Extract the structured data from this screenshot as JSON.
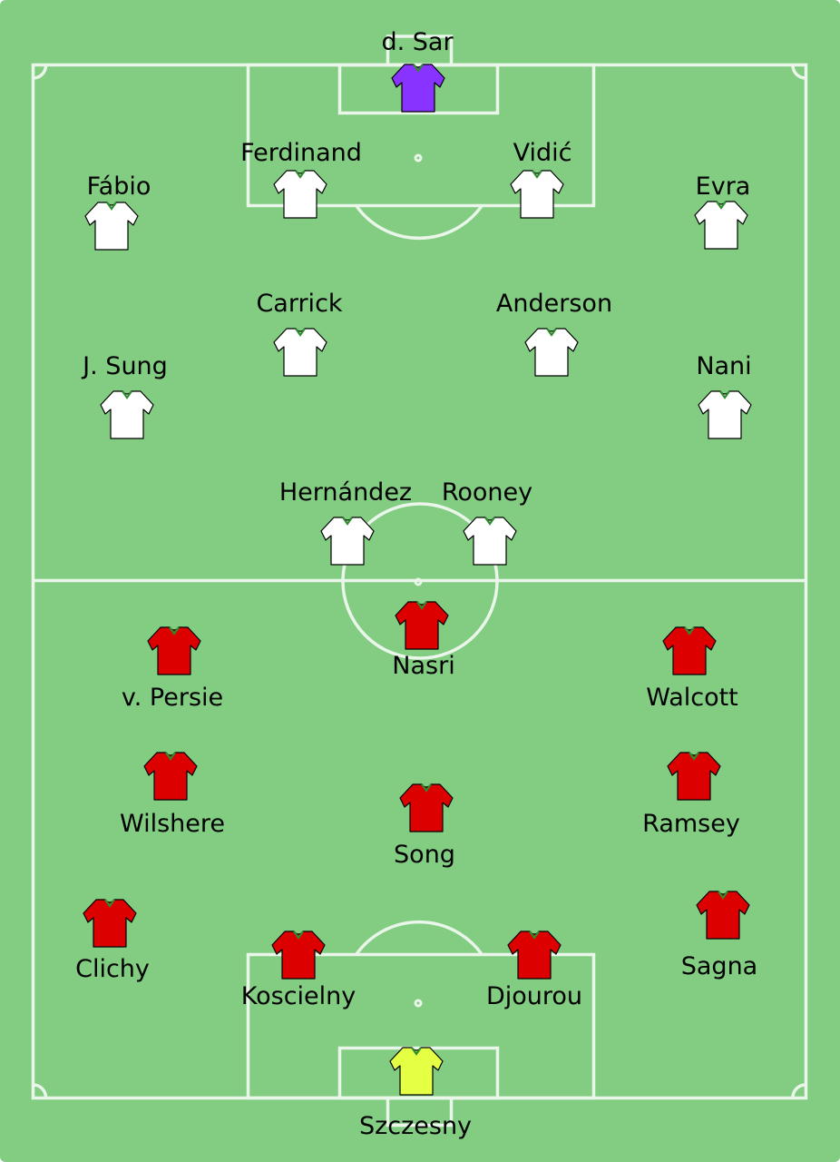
{
  "colors": {
    "pitch": "#82cd82",
    "lines": "#eaf6ea",
    "home_outfield": "#ffffff",
    "home_goalkeeper": "#8833ff",
    "away_outfield": "#dd0000",
    "away_goalkeeper": "#e4ff44",
    "shirt_outline": "#000000",
    "collar": "#2e8b2e"
  },
  "teams": {
    "top": {
      "players": [
        {
          "name": "d. Sar",
          "role": "goalkeeper"
        },
        {
          "name": "Ferdinand",
          "role": "outfield"
        },
        {
          "name": "Vidić",
          "role": "outfield"
        },
        {
          "name": "Fábio",
          "role": "outfield"
        },
        {
          "name": "Evra",
          "role": "outfield"
        },
        {
          "name": "Carrick",
          "role": "outfield"
        },
        {
          "name": "Anderson",
          "role": "outfield"
        },
        {
          "name": "J. Sung",
          "role": "outfield"
        },
        {
          "name": "Nani",
          "role": "outfield"
        },
        {
          "name": "Hernández",
          "role": "outfield"
        },
        {
          "name": "Rooney",
          "role": "outfield"
        }
      ]
    },
    "bottom": {
      "players": [
        {
          "name": "Nasri",
          "role": "outfield"
        },
        {
          "name": "v. Persie",
          "role": "outfield"
        },
        {
          "name": "Walcott",
          "role": "outfield"
        },
        {
          "name": "Wilshere",
          "role": "outfield"
        },
        {
          "name": "Ramsey",
          "role": "outfield"
        },
        {
          "name": "Song",
          "role": "outfield"
        },
        {
          "name": "Clichy",
          "role": "outfield"
        },
        {
          "name": "Sagna",
          "role": "outfield"
        },
        {
          "name": "Koscielny",
          "role": "outfield"
        },
        {
          "name": "Djourou",
          "role": "outfield"
        },
        {
          "name": "Szczesny",
          "role": "goalkeeper"
        }
      ]
    }
  }
}
